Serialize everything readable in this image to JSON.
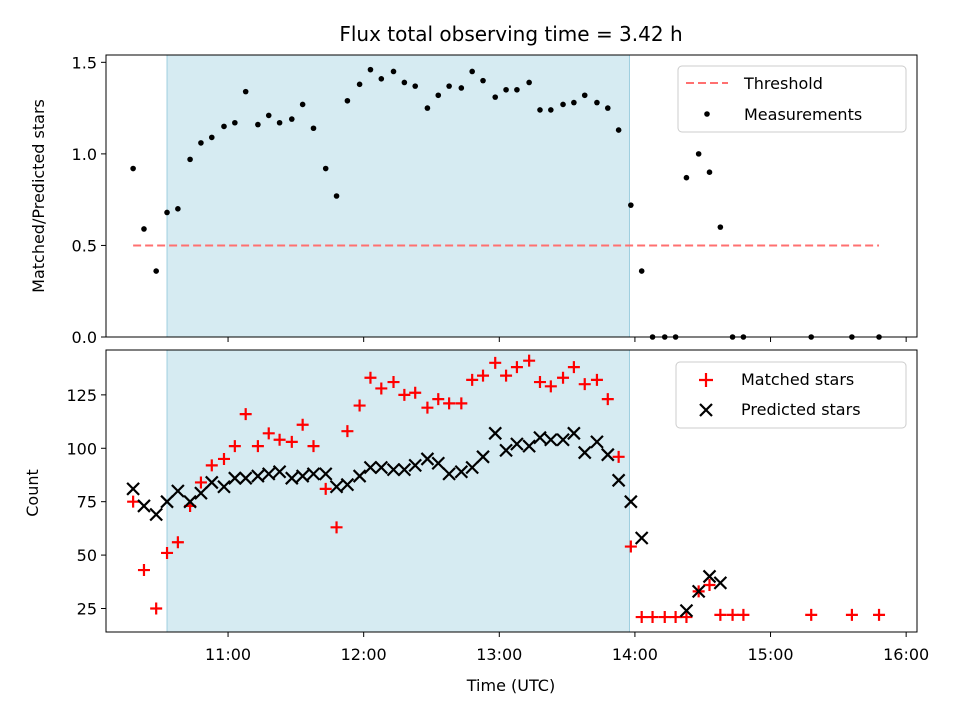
{
  "chart_data": [
    {
      "type": "scatter",
      "title": "Flux total observing time = 3.42 h",
      "xlabel": "",
      "ylabel": "Matched/Predicted stars",
      "xlim": [
        10.1,
        16.08
      ],
      "ylim": [
        0,
        1.54
      ],
      "xticks": [
        11,
        12,
        13,
        14,
        15,
        16
      ],
      "yticks": [
        0.0,
        0.5,
        1.0,
        1.5
      ],
      "ytick_labels": [
        "0.0",
        "0.5",
        "1.0",
        "1.5"
      ],
      "shaded_span": [
        10.55,
        13.96
      ],
      "shade_color": "#add8e6",
      "legend_position": "top-right",
      "threshold": {
        "name": "Threshold",
        "y": 0.5,
        "x_range": [
          10.3,
          15.8
        ],
        "color": "#ff8080"
      },
      "measurements": {
        "name": "Measurements",
        "color": "#000000",
        "x": [
          10.3,
          10.38,
          10.47,
          10.55,
          10.63,
          10.72,
          10.8,
          10.88,
          10.97,
          11.05,
          11.13,
          11.22,
          11.3,
          11.38,
          11.47,
          11.55,
          11.63,
          11.72,
          11.8,
          11.88,
          11.97,
          12.05,
          12.13,
          12.22,
          12.3,
          12.38,
          12.47,
          12.55,
          12.63,
          12.72,
          12.8,
          12.88,
          12.97,
          13.05,
          13.13,
          13.22,
          13.3,
          13.38,
          13.47,
          13.55,
          13.63,
          13.72,
          13.8,
          13.88,
          13.97,
          14.05,
          14.13,
          14.22,
          14.3,
          14.38,
          14.47,
          14.55,
          14.63,
          14.72,
          14.8,
          15.3,
          15.6,
          15.8
        ],
        "y": [
          0.92,
          0.59,
          0.36,
          0.68,
          0.7,
          0.97,
          1.06,
          1.09,
          1.15,
          1.17,
          1.34,
          1.16,
          1.21,
          1.17,
          1.19,
          1.27,
          1.14,
          0.92,
          0.77,
          1.29,
          1.38,
          1.46,
          1.41,
          1.45,
          1.39,
          1.37,
          1.25,
          1.32,
          1.37,
          1.36,
          1.45,
          1.4,
          1.31,
          1.35,
          1.35,
          1.39,
          1.24,
          1.24,
          1.27,
          1.28,
          1.32,
          1.28,
          1.25,
          1.13,
          0.72,
          0.36,
          0.0,
          0.0,
          0.0,
          0.87,
          1.0,
          0.9,
          0.6,
          0.0,
          0.0,
          0.0,
          0.0,
          0.0
        ]
      },
      "legend": [
        "Threshold",
        "Measurements"
      ]
    },
    {
      "type": "scatter",
      "title": "",
      "xlabel": "Time (UTC)",
      "ylabel": "Count",
      "xlim": [
        10.1,
        16.08
      ],
      "ylim": [
        14,
        146
      ],
      "xticks": [
        11,
        12,
        13,
        14,
        15,
        16
      ],
      "xtick_labels": [
        "11:00",
        "12:00",
        "13:00",
        "14:00",
        "15:00",
        "16:00"
      ],
      "yticks": [
        25,
        50,
        75,
        100,
        125
      ],
      "ytick_labels": [
        "25",
        "50",
        "75",
        "100",
        "125"
      ],
      "shaded_span": [
        10.55,
        13.96
      ],
      "shade_color": "#add8e6",
      "legend_position": "top-right",
      "series": [
        {
          "name": "Matched stars",
          "marker": "+",
          "color": "#ff0000",
          "x": [
            10.3,
            10.38,
            10.47,
            10.55,
            10.63,
            10.72,
            10.8,
            10.88,
            10.97,
            11.05,
            11.13,
            11.22,
            11.3,
            11.38,
            11.47,
            11.55,
            11.63,
            11.72,
            11.8,
            11.88,
            11.97,
            12.05,
            12.13,
            12.22,
            12.3,
            12.38,
            12.47,
            12.55,
            12.63,
            12.72,
            12.8,
            12.88,
            12.97,
            13.05,
            13.13,
            13.22,
            13.3,
            13.38,
            13.47,
            13.55,
            13.63,
            13.72,
            13.8,
            13.88,
            13.97,
            14.05,
            14.13,
            14.22,
            14.3,
            14.38,
            14.47,
            14.55,
            14.63,
            14.72,
            14.8,
            15.3,
            15.6,
            15.8
          ],
          "y": [
            75,
            43,
            25,
            51,
            56,
            73,
            84,
            92,
            95,
            101,
            116,
            101,
            107,
            104,
            103,
            111,
            101,
            81,
            63,
            108,
            120,
            133,
            128,
            131,
            125,
            126,
            119,
            123,
            121,
            121,
            132,
            134,
            140,
            134,
            138,
            141,
            131,
            129,
            133,
            138,
            130,
            132,
            123,
            96,
            54,
            21,
            21,
            21,
            21,
            21,
            33,
            36,
            22,
            22,
            22,
            22,
            22,
            22
          ]
        },
        {
          "name": "Predicted stars",
          "marker": "x",
          "color": "#000000",
          "x": [
            10.3,
            10.38,
            10.47,
            10.55,
            10.63,
            10.72,
            10.8,
            10.88,
            10.97,
            11.05,
            11.13,
            11.22,
            11.3,
            11.38,
            11.47,
            11.55,
            11.63,
            11.72,
            11.8,
            11.88,
            11.97,
            12.05,
            12.13,
            12.22,
            12.3,
            12.38,
            12.47,
            12.55,
            12.63,
            12.72,
            12.8,
            12.88,
            12.97,
            13.05,
            13.13,
            13.22,
            13.3,
            13.38,
            13.47,
            13.55,
            13.63,
            13.72,
            13.8,
            13.88,
            13.97,
            14.05,
            14.38,
            14.47,
            14.55,
            14.63
          ],
          "y": [
            81,
            73,
            69,
            75,
            80,
            75,
            79,
            84,
            82,
            86,
            86,
            87,
            88,
            89,
            86,
            87,
            88,
            88,
            82,
            83,
            87,
            91,
            91,
            90,
            90,
            92,
            95,
            93,
            88,
            89,
            91,
            96,
            107,
            99,
            102,
            101,
            105,
            104,
            104,
            107,
            98,
            103,
            97,
            85,
            75,
            58,
            24,
            33,
            40,
            37
          ]
        }
      ],
      "legend": [
        "Matched stars",
        "Predicted stars"
      ]
    }
  ]
}
